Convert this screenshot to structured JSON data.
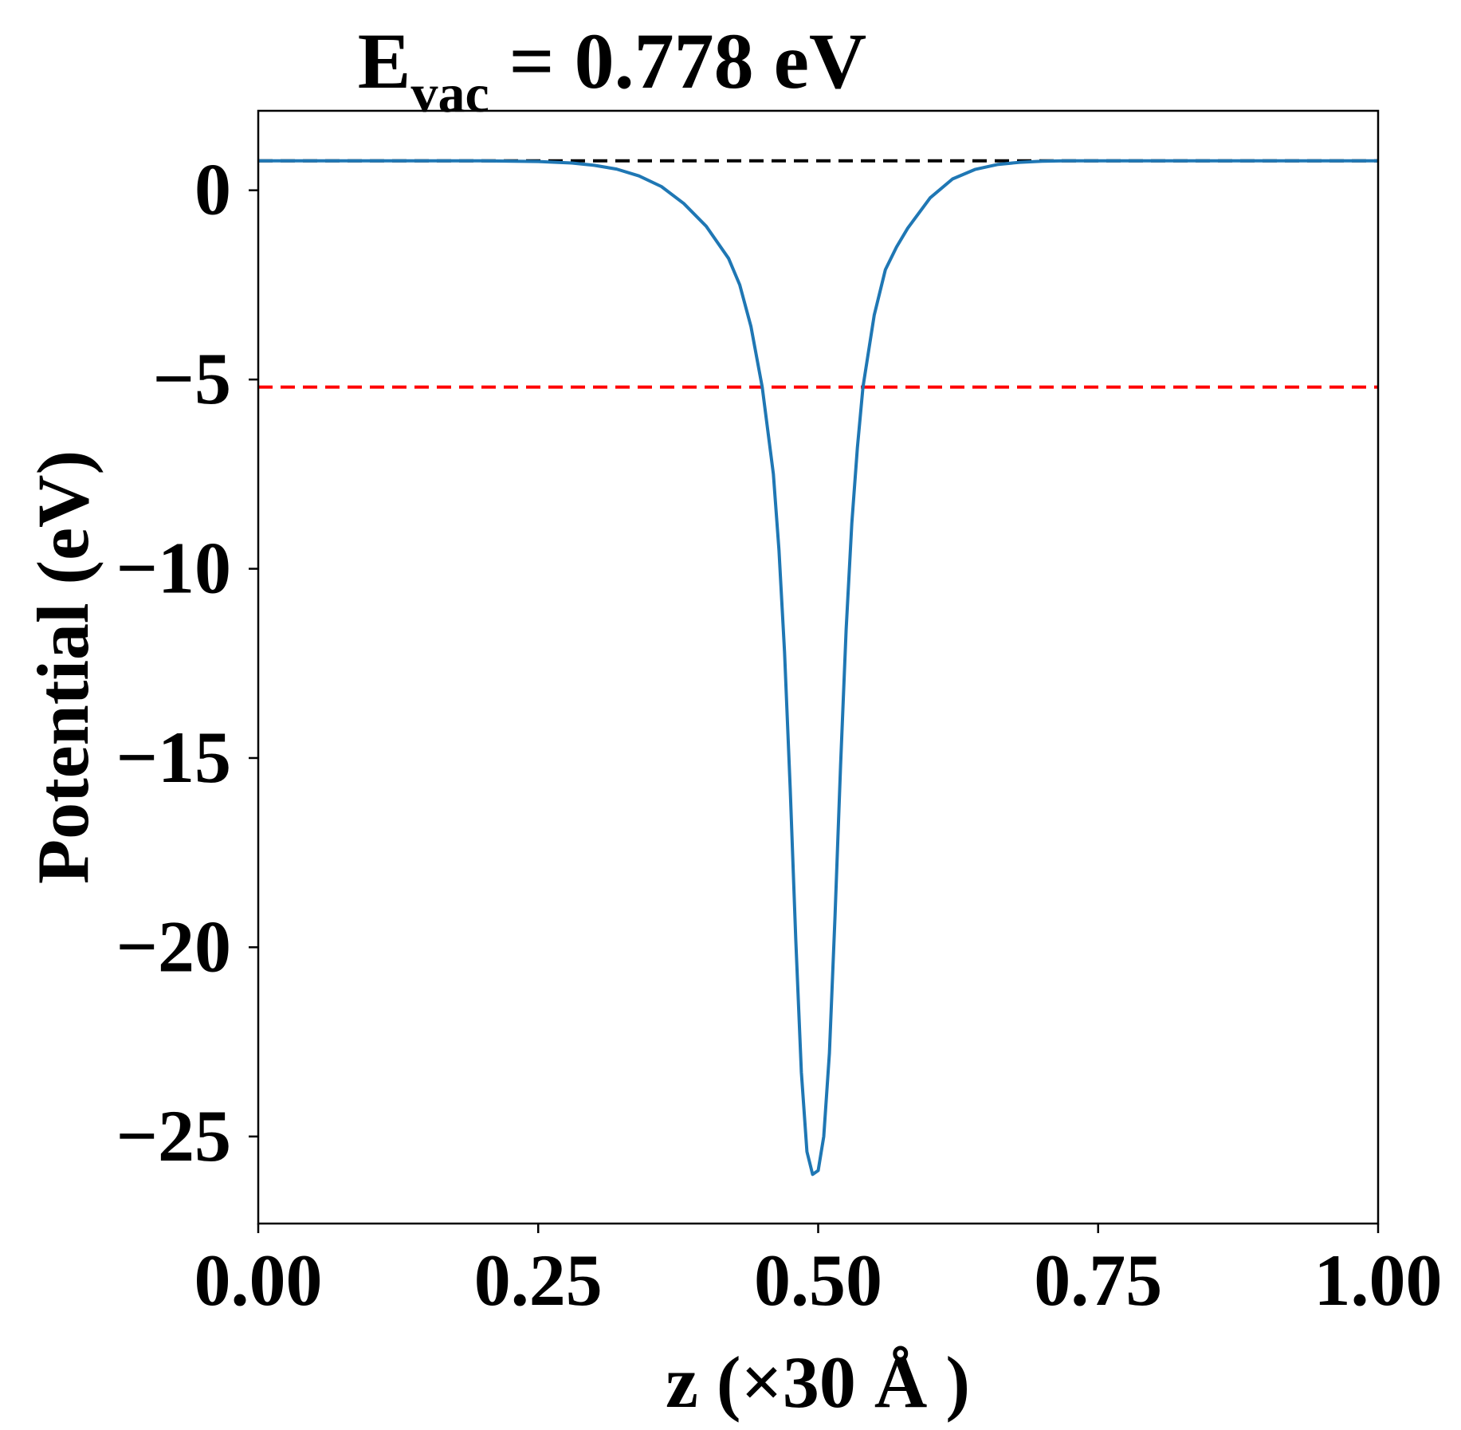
{
  "chart_data": {
    "type": "line",
    "title": {
      "main": "E",
      "sub": "vac",
      "rest": " = 0.778 eV"
    },
    "xlabel": "z (×30 Å )",
    "ylabel": "Potential (eV)",
    "xlim": [
      0,
      1
    ],
    "ylim": [
      -27.3,
      2.1
    ],
    "x_ticks": [
      0,
      0.25,
      0.5,
      0.75,
      1.0
    ],
    "x_tick_labels": [
      "0.00",
      "0.25",
      "0.50",
      "0.75",
      "1.00"
    ],
    "y_ticks": [
      0,
      -5,
      -10,
      -15,
      -20,
      -25
    ],
    "y_tick_labels": [
      "0",
      "−5",
      "−10",
      "−15",
      "−20",
      "−25"
    ],
    "grid": false,
    "series": [
      {
        "color": "#1f77b4",
        "x": [
          0.0,
          0.05,
          0.1,
          0.15,
          0.2,
          0.25,
          0.28,
          0.3,
          0.32,
          0.34,
          0.36,
          0.38,
          0.4,
          0.42,
          0.43,
          0.44,
          0.45,
          0.46,
          0.465,
          0.47,
          0.475,
          0.48,
          0.485,
          0.49,
          0.495,
          0.5,
          0.505,
          0.51,
          0.515,
          0.52,
          0.525,
          0.53,
          0.535,
          0.54,
          0.55,
          0.56,
          0.57,
          0.58,
          0.6,
          0.62,
          0.64,
          0.66,
          0.68,
          0.7,
          0.72,
          0.75,
          0.8,
          0.85,
          0.9,
          0.95,
          1.0
        ],
        "y": [
          0.78,
          0.78,
          0.78,
          0.78,
          0.78,
          0.76,
          0.72,
          0.66,
          0.56,
          0.38,
          0.1,
          -0.35,
          -0.95,
          -1.8,
          -2.5,
          -3.6,
          -5.2,
          -7.5,
          -9.5,
          -12.2,
          -15.8,
          -19.8,
          -23.3,
          -25.4,
          -26.0,
          -25.9,
          -25.0,
          -22.8,
          -19.2,
          -15.2,
          -11.6,
          -8.8,
          -6.8,
          -5.2,
          -3.3,
          -2.1,
          -1.5,
          -1.0,
          -0.2,
          0.3,
          0.55,
          0.68,
          0.74,
          0.77,
          0.78,
          0.78,
          0.78,
          0.78,
          0.78,
          0.78,
          0.78
        ]
      }
    ],
    "reference_lines": [
      {
        "y": 0.778,
        "color": "#000000",
        "style": "dashed"
      },
      {
        "y": -5.2,
        "color": "#ff0000",
        "style": "dashed"
      }
    ]
  }
}
